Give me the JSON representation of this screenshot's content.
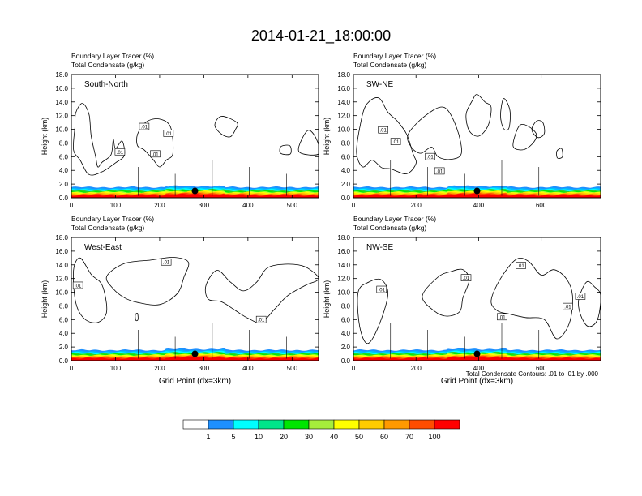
{
  "title": "2014-01-21_18:00:00",
  "colors": {
    "bands": [
      "#ffffff",
      "#1e90ff",
      "#00bfff",
      "#00ffff",
      "#32cd32",
      "#00ee00",
      "#adff2f",
      "#ffff00",
      "#ffd700",
      "#ffa500",
      "#ff4500",
      "#ff0000"
    ]
  },
  "colorbar": {
    "labels": [
      "1",
      "5",
      "10",
      "20",
      "30",
      "40",
      "50",
      "60",
      "70",
      "100"
    ],
    "colors": [
      "#ffffff",
      "#1e90ff",
      "#00ffff",
      "#00e68a",
      "#00e600",
      "#a6ed3b",
      "#ffff00",
      "#ffcc00",
      "#ff9900",
      "#ff4d00",
      "#ff0000"
    ]
  },
  "footnote": "Total Condensate Contours: .01 to .01 by .000",
  "chart_data": [
    {
      "type": "contour",
      "panel": "South-North",
      "subtitle1": "Boundary Layer Tracer   (%)",
      "subtitle2": "Total Condensate   (g/kg)",
      "ylabel": "Height (km)",
      "xlabel": "",
      "xlim": [
        0,
        560
      ],
      "ylim": [
        0,
        18
      ],
      "xticks": [
        "0",
        "100",
        "200",
        "300",
        "400",
        "500"
      ],
      "xtick_values": [
        0,
        100,
        200,
        300,
        400,
        500
      ],
      "yticks": [
        "0.0",
        "2.0",
        "4.0",
        "6.0",
        "8.0",
        "10.0",
        "12.0",
        "14.0",
        "16.0",
        "18.0"
      ],
      "marker": {
        "x": 280,
        "y": 1.0
      },
      "contour_labels": [
        ".01",
        ".01",
        ".01",
        ".01"
      ],
      "label_positions": [
        [
          110,
          6.6
        ],
        [
          165,
          10.3
        ],
        [
          220,
          9.3
        ],
        [
          190,
          6.3
        ]
      ],
      "clouds": [
        [
          [
            10,
            12.4
          ],
          [
            25,
            13.8
          ],
          [
            40,
            12.2
          ],
          [
            45,
            9.0
          ],
          [
            55,
            6.0
          ],
          [
            60,
            4.5
          ],
          [
            70,
            5.2
          ],
          [
            90,
            6.3
          ],
          [
            95,
            8.5
          ],
          [
            100,
            7.2
          ],
          [
            115,
            8.3
          ],
          [
            120,
            6.2
          ],
          [
            100,
            5.1
          ],
          [
            70,
            3.8
          ],
          [
            40,
            3.4
          ],
          [
            20,
            5.5
          ],
          [
            5,
            7.0
          ],
          [
            8,
            10.3
          ]
        ],
        [
          [
            150,
            9.3
          ],
          [
            170,
            11.1
          ],
          [
            200,
            11.5
          ],
          [
            225,
            10.3
          ],
          [
            230,
            6.5
          ],
          [
            215,
            5.5
          ],
          [
            200,
            4.5
          ],
          [
            185,
            5.6
          ],
          [
            165,
            7.0
          ],
          [
            150,
            7.6
          ]
        ],
        [
          [
            325,
            10.6
          ],
          [
            340,
            11.9
          ],
          [
            375,
            11.0
          ],
          [
            372,
            10.0
          ],
          [
            360,
            8.9
          ],
          [
            340,
            9.3
          ]
        ],
        [
          [
            475,
            7.5
          ],
          [
            495,
            7.6
          ],
          [
            496,
            6.4
          ],
          [
            474,
            6.5
          ]
        ],
        [
          [
            515,
            6.8
          ],
          [
            535,
            9.8
          ],
          [
            555,
            8.6
          ],
          [
            560,
            6.4
          ]
        ]
      ]
    },
    {
      "type": "contour",
      "panel": "SW-NE",
      "subtitle1": "Boundary Layer Tracer   (%)",
      "subtitle2": "Total Condensate   (g/kg)",
      "ylabel": "Height (km)",
      "xlabel": "",
      "xlim": [
        0,
        790
      ],
      "ylim": [
        0,
        18
      ],
      "xticks": [
        "0",
        "200",
        "400",
        "600"
      ],
      "xtick_values": [
        0,
        200,
        400,
        600
      ],
      "yticks": [
        "0.0",
        "2.0",
        "4.0",
        "6.0",
        "8.0",
        "10.0",
        "12.0",
        "14.0",
        "16.0",
        "18.0"
      ],
      "marker": {
        "x": 395,
        "y": 1.0
      },
      "contour_labels": [
        ".01",
        ".01",
        ".01",
        ".01"
      ],
      "label_positions": [
        [
          95,
          9.8
        ],
        [
          135,
          8.1
        ],
        [
          245,
          5.9
        ],
        [
          275,
          3.8
        ]
      ],
      "clouds": [
        [
          [
            20,
            10.2
          ],
          [
            40,
            13.5
          ],
          [
            80,
            14.6
          ],
          [
            110,
            12.5
          ],
          [
            140,
            11.2
          ],
          [
            170,
            9.3
          ],
          [
            190,
            6.5
          ],
          [
            200,
            5.0
          ],
          [
            170,
            3.5
          ],
          [
            120,
            4.2
          ],
          [
            90,
            4.4
          ],
          [
            60,
            5.5
          ],
          [
            30,
            4.5
          ],
          [
            10,
            6.5
          ]
        ],
        [
          [
            175,
            9.3
          ],
          [
            230,
            12.0
          ],
          [
            290,
            13.2
          ],
          [
            330,
            10.2
          ],
          [
            345,
            6.5
          ],
          [
            310,
            5.6
          ],
          [
            270,
            6.0
          ],
          [
            250,
            7.4
          ],
          [
            215,
            6.5
          ],
          [
            185,
            7.4
          ]
        ],
        [
          [
            360,
            12.2
          ],
          [
            380,
            14.2
          ],
          [
            395,
            15.1
          ],
          [
            420,
            14.0
          ],
          [
            440,
            13.2
          ],
          [
            430,
            10.5
          ],
          [
            400,
            9.0
          ],
          [
            370,
            9.8
          ]
        ],
        [
          [
            470,
            12.0
          ],
          [
            480,
            14.5
          ],
          [
            500,
            12.8
          ],
          [
            497,
            10.2
          ],
          [
            480,
            10.1
          ]
        ],
        [
          [
            510,
            7.6
          ],
          [
            530,
            10.5
          ],
          [
            560,
            10.4
          ],
          [
            585,
            9.2
          ],
          [
            570,
            7.8
          ],
          [
            540,
            7.0
          ]
        ],
        [
          [
            570,
            9.9
          ],
          [
            585,
            11.2
          ],
          [
            605,
            11.0
          ],
          [
            610,
            9.4
          ],
          [
            590,
            8.8
          ]
        ],
        [
          [
            650,
            6.8
          ],
          [
            665,
            7.2
          ],
          [
            668,
            6.0
          ],
          [
            652,
            5.8
          ]
        ]
      ]
    },
    {
      "type": "contour",
      "panel": "West-East",
      "subtitle1": "Boundary Layer Tracer   (%)",
      "subtitle2": "Total Condensate   (g/kg)",
      "ylabel": "Height (km)",
      "xlabel": "Grid Point (dx=3km)",
      "xlim": [
        0,
        560
      ],
      "ylim": [
        0,
        18
      ],
      "xticks": [
        "0",
        "100",
        "200",
        "300",
        "400",
        "500"
      ],
      "xtick_values": [
        0,
        100,
        200,
        300,
        400,
        500
      ],
      "yticks": [
        "0.0",
        "2.0",
        "4.0",
        "6.0",
        "8.0",
        "10.0",
        "12.0",
        "14.0",
        "16.0",
        "18.0"
      ],
      "marker": {
        "x": 280,
        "y": 1.0
      },
      "contour_labels": [
        ".01",
        ".01",
        ".01"
      ],
      "label_positions": [
        [
          215,
          14.3
        ],
        [
          15,
          10.9
        ],
        [
          430,
          5.9
        ]
      ],
      "clouds": [
        [
          [
            5,
            13.2
          ],
          [
            20,
            15.0
          ],
          [
            45,
            12.6
          ],
          [
            70,
            11.0
          ],
          [
            80,
            7.2
          ],
          [
            60,
            5.6
          ],
          [
            30,
            6.1
          ],
          [
            10,
            8.5
          ]
        ],
        [
          [
            80,
            12.3
          ],
          [
            120,
            14.2
          ],
          [
            180,
            14.7
          ],
          [
            230,
            15.1
          ],
          [
            265,
            14.4
          ],
          [
            255,
            12.2
          ],
          [
            240,
            9.8
          ],
          [
            200,
            8.2
          ],
          [
            150,
            8.5
          ],
          [
            120,
            9.2
          ],
          [
            95,
            10.5
          ]
        ],
        [
          [
            305,
            11.0
          ],
          [
            330,
            13.2
          ],
          [
            360,
            11.5
          ],
          [
            390,
            10.2
          ],
          [
            420,
            11.5
          ],
          [
            445,
            13.6
          ],
          [
            490,
            14.1
          ],
          [
            530,
            13.7
          ],
          [
            560,
            12.0
          ],
          [
            530,
            11.0
          ],
          [
            490,
            9.5
          ],
          [
            460,
            7.5
          ],
          [
            430,
            5.6
          ],
          [
            400,
            6.2
          ],
          [
            370,
            7.4
          ],
          [
            340,
            8.6
          ],
          [
            310,
            9.0
          ]
        ],
        [
          [
            145,
            6.7
          ],
          [
            150,
            6.9
          ],
          [
            151,
            6.0
          ],
          [
            146,
            5.9
          ]
        ]
      ]
    },
    {
      "type": "contour",
      "panel": "NW-SE",
      "subtitle1": "Boundary Layer Tracer   (%)",
      "subtitle2": "Total Condensate   (g/kg)",
      "ylabel": "Height (km)",
      "xlabel": "Grid Point (dx=3km)",
      "xlim": [
        0,
        790
      ],
      "ylim": [
        0,
        18
      ],
      "xticks": [
        "0",
        "200",
        "400",
        "600"
      ],
      "xtick_values": [
        0,
        200,
        400,
        600
      ],
      "yticks": [
        "0.0",
        "2.0",
        "4.0",
        "6.0",
        "8.0",
        "10.0",
        "12.0",
        "14.0",
        "16.0",
        "18.0"
      ],
      "marker": {
        "x": 395,
        "y": 1.0
      },
      "contour_labels": [
        ".01",
        ".01",
        ".01",
        ".01",
        ".01",
        ".01"
      ],
      "label_positions": [
        [
          90,
          10.3
        ],
        [
          360,
          12.0
        ],
        [
          535,
          13.8
        ],
        [
          475,
          6.3
        ],
        [
          685,
          7.8
        ],
        [
          725,
          9.3
        ]
      ],
      "clouds": [
        [
          [
            15,
            10.0
          ],
          [
            50,
            11.5
          ],
          [
            90,
            11.8
          ],
          [
            110,
            9.6
          ],
          [
            80,
            5.0
          ],
          [
            45,
            2.5
          ],
          [
            20,
            5.0
          ]
        ],
        [
          [
            220,
            9.4
          ],
          [
            270,
            12.2
          ],
          [
            310,
            13.0
          ],
          [
            350,
            13.3
          ],
          [
            370,
            11.8
          ],
          [
            350,
            9.2
          ],
          [
            340,
            7.2
          ],
          [
            300,
            6.5
          ],
          [
            260,
            7.2
          ]
        ],
        [
          [
            440,
            8.8
          ],
          [
            470,
            12.0
          ],
          [
            520,
            14.8
          ],
          [
            560,
            14.5
          ],
          [
            600,
            12.5
          ],
          [
            640,
            13.3
          ],
          [
            680,
            12.0
          ],
          [
            700,
            9.5
          ],
          [
            690,
            5.5
          ],
          [
            650,
            3.2
          ],
          [
            610,
            6.0
          ],
          [
            550,
            6.3
          ],
          [
            500,
            6.8
          ],
          [
            460,
            7.3
          ]
        ],
        [
          [
            720,
            9.0
          ],
          [
            745,
            11.5
          ],
          [
            770,
            10.8
          ],
          [
            790,
            9.5
          ],
          [
            780,
            6.0
          ],
          [
            750,
            5.0
          ],
          [
            725,
            6.8
          ]
        ]
      ]
    }
  ]
}
